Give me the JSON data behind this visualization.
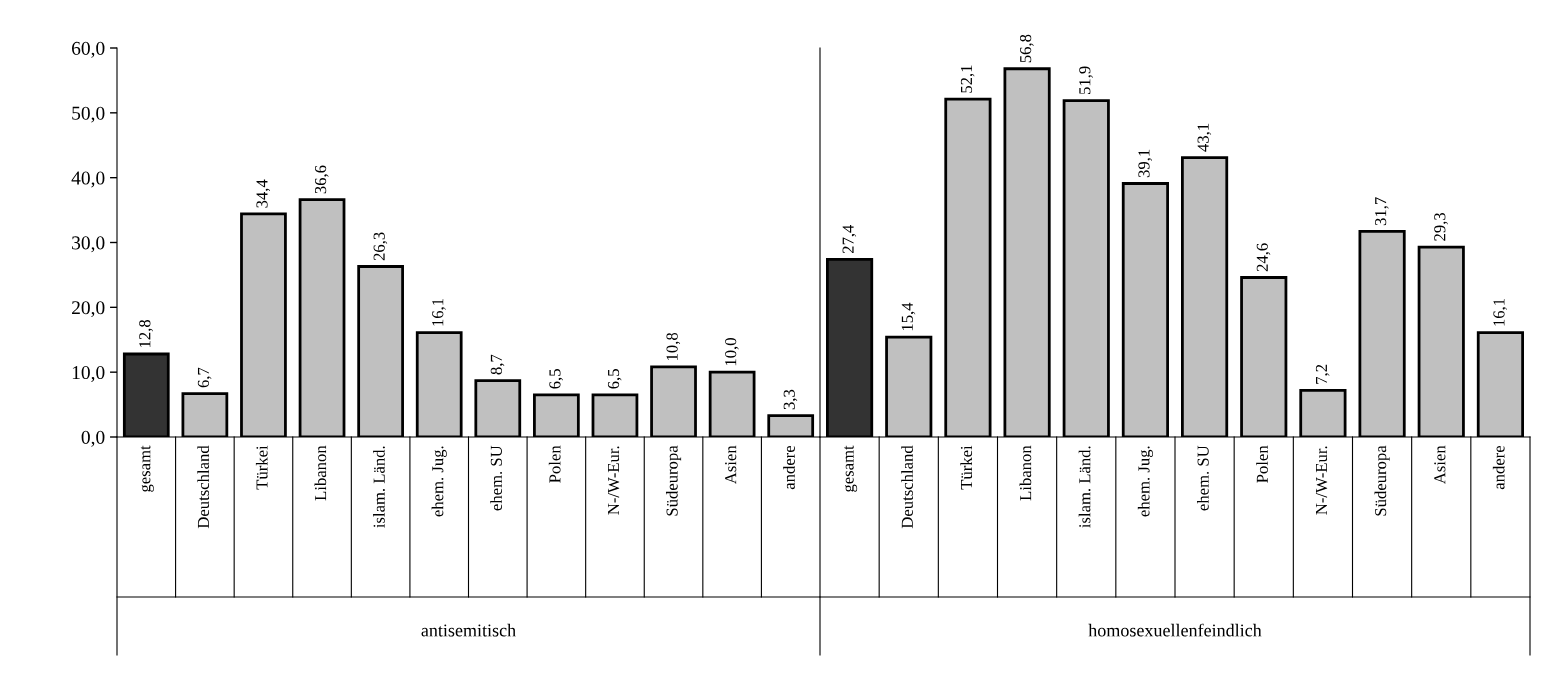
{
  "chart_data": [
    {
      "type": "bar",
      "xlabel": "antisemitisch",
      "categories": [
        "gesamt",
        "Deutschland",
        "Türkei",
        "Libanon",
        "islam. Länd.",
        "ehem. Jug.",
        "ehem. SU",
        "Polen",
        "N-/W-Eur.",
        "Südeuropa",
        "Asien",
        "andere"
      ],
      "values": [
        12.8,
        6.7,
        34.4,
        36.6,
        26.3,
        16.1,
        8.7,
        6.5,
        6.5,
        10.8,
        10.0,
        3.3
      ],
      "value_labels": [
        "12,8",
        "6,7",
        "34,4",
        "36,6",
        "26,3",
        "16,1",
        "8,7",
        "6,5",
        "6,5",
        "10,8",
        "10,0",
        "3,3"
      ],
      "colors": [
        "#333333",
        "#c0c0c0",
        "#c0c0c0",
        "#c0c0c0",
        "#c0c0c0",
        "#c0c0c0",
        "#c0c0c0",
        "#c0c0c0",
        "#c0c0c0",
        "#c0c0c0",
        "#c0c0c0",
        "#c0c0c0"
      ],
      "ylim": [
        0,
        60
      ],
      "yticks": [
        {
          "value": 0,
          "label": "0,0"
        },
        {
          "value": 10,
          "label": "10,0"
        },
        {
          "value": 20,
          "label": "20,0"
        },
        {
          "value": 30,
          "label": "30,0"
        },
        {
          "value": 40,
          "label": "40,0"
        },
        {
          "value": 50,
          "label": "50,0"
        },
        {
          "value": 60,
          "label": "60,0"
        }
      ],
      "grid": false,
      "legend": false
    },
    {
      "type": "bar",
      "xlabel": "homosexuellenfeindlich",
      "categories": [
        "gesamt",
        "Deutschland",
        "Türkei",
        "Libanon",
        "islam. Länd.",
        "ehem. Jug.",
        "ehem. SU",
        "Polen",
        "N-/W-Eur.",
        "Südeuropa",
        "Asien",
        "andere"
      ],
      "values": [
        27.4,
        15.4,
        52.1,
        56.8,
        51.9,
        39.1,
        43.1,
        24.6,
        7.2,
        31.7,
        29.3,
        16.1
      ],
      "value_labels": [
        "27,4",
        "15,4",
        "52,1",
        "56,8",
        "51,9",
        "39,1",
        "43,1",
        "24,6",
        "7,2",
        "31,7",
        "29,3",
        "16,1"
      ],
      "colors": [
        "#333333",
        "#c0c0c0",
        "#c0c0c0",
        "#c0c0c0",
        "#c0c0c0",
        "#c0c0c0",
        "#c0c0c0",
        "#c0c0c0",
        "#c0c0c0",
        "#c0c0c0",
        "#c0c0c0",
        "#c0c0c0"
      ],
      "ylim": [
        0,
        60
      ],
      "tick_labels": "x",
      "grid": false,
      "legend": false
    }
  ]
}
